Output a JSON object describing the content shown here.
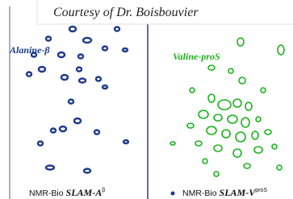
{
  "caption": "Courtesy of Dr. Boisbouvier",
  "panels": [
    {
      "label": "Alanine-β",
      "footer": {
        "prefix": "NMR-Bio",
        "name": "SLAM-A",
        "superscript": "β"
      }
    },
    {
      "label": "Valine-proS",
      "footer": {
        "prefix": "NMR-Bio",
        "name": "SLAM-V",
        "superscript": "proS"
      }
    }
  ]
}
